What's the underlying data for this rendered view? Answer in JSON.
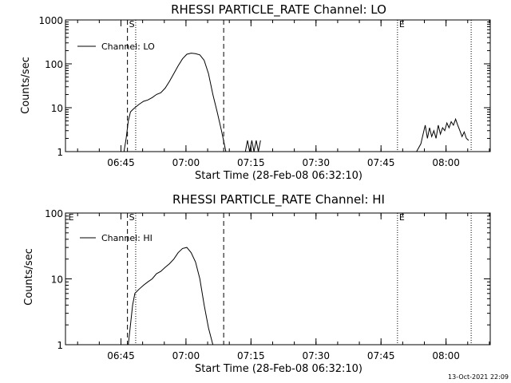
{
  "chart_data": [
    {
      "type": "line",
      "title": "RHESSI PARTICLE_RATE Channel: LO",
      "xlabel": "Start Time (28-Feb-08 06:32:10)",
      "ylabel": "Counts/sec",
      "yscale": "log",
      "ylim": [
        1,
        1000
      ],
      "xlim_minutes": [
        0,
        98
      ],
      "yticks": [
        {
          "value": 1,
          "label": "1"
        },
        {
          "value": 10,
          "label": "10"
        },
        {
          "value": 100,
          "label": "100"
        },
        {
          "value": 1000,
          "label": "1000"
        }
      ],
      "xticks": [
        {
          "value": 12.8,
          "label": "06:45"
        },
        {
          "value": 27.8,
          "label": "07:00"
        },
        {
          "value": 42.8,
          "label": "07:15"
        },
        {
          "value": 57.8,
          "label": "07:30"
        },
        {
          "value": 72.8,
          "label": "07:45"
        },
        {
          "value": 87.8,
          "label": "08:00"
        }
      ],
      "legend": {
        "entries": [
          "Channel: LO"
        ],
        "position": "top-left"
      },
      "markers": [
        {
          "label": "S",
          "x": 14.3,
          "style": "dashed"
        },
        {
          "label": "",
          "x": 16.2,
          "style": "dotted"
        },
        {
          "label": "",
          "x": 36.5,
          "style": "dashed"
        },
        {
          "label": "E",
          "x": 76.6,
          "style": "dotted"
        },
        {
          "label": "",
          "x": 93.6,
          "style": "dotted"
        }
      ],
      "series": [
        {
          "name": "Channel: LO",
          "segments": [
            {
              "x": [
                13.5,
                14.0,
                14.5,
                15.0,
                15.5,
                16.0,
                17.0,
                18.0,
                19.0,
                20.0,
                21.0,
                22.0,
                23.0,
                24.0,
                25.0,
                26.0,
                27.0,
                28.0,
                29.0,
                30.0,
                31.0,
                32.0,
                33.0,
                34.0,
                35.0,
                36.0,
                37.0
              ],
              "y": [
                1,
                2,
                5,
                8,
                9,
                10,
                12,
                14,
                15,
                17,
                20,
                22,
                28,
                40,
                60,
                90,
                130,
                165,
                175,
                170,
                160,
                120,
                60,
                20,
                8,
                3,
                1
              ]
            },
            {
              "x": [
                41.5,
                42.0,
                42.5,
                43.0,
                43.5,
                44.0,
                44.5,
                45.0
              ],
              "y": [
                1,
                1.8,
                1,
                1.8,
                1,
                1.8,
                1,
                1.8
              ]
            },
            {
              "x": [
                81.0,
                82.0,
                82.5,
                83.0,
                83.5,
                84.0,
                84.5,
                85.0,
                85.5,
                86.0,
                86.5,
                87.0,
                87.5,
                88.0,
                88.5,
                89.0,
                89.5,
                90.0,
                90.5,
                91.0,
                91.5,
                92.0,
                92.5,
                93.0
              ],
              "y": [
                1,
                1.5,
                2.5,
                4,
                2,
                3.5,
                2.2,
                3,
                2,
                4,
                2.5,
                3.5,
                3,
                4.5,
                3.5,
                4.8,
                4,
                5.5,
                4,
                3,
                2.2,
                2.8,
                2,
                1.8
              ]
            }
          ]
        }
      ]
    },
    {
      "type": "line",
      "title": "RHESSI PARTICLE_RATE Channel: HI",
      "xlabel": "Start Time (28-Feb-08 06:32:10)",
      "ylabel": "Counts/sec",
      "yscale": "log",
      "ylim": [
        1,
        100
      ],
      "xlim_minutes": [
        0,
        98
      ],
      "yticks": [
        {
          "value": 1,
          "label": "1"
        },
        {
          "value": 10,
          "label": "10"
        },
        {
          "value": 100,
          "label": "100"
        }
      ],
      "xticks": [
        {
          "value": 12.8,
          "label": "06:45"
        },
        {
          "value": 27.8,
          "label": "07:00"
        },
        {
          "value": 42.8,
          "label": "07:15"
        },
        {
          "value": 57.8,
          "label": "07:30"
        },
        {
          "value": 72.8,
          "label": "07:45"
        },
        {
          "value": 87.8,
          "label": "08:00"
        }
      ],
      "legend": {
        "entries": [
          "Channel: HI"
        ],
        "position": "top-left"
      },
      "markers": [
        {
          "label": "E",
          "x": 0.3,
          "style": "none"
        },
        {
          "label": "S",
          "x": 14.3,
          "style": "dashed"
        },
        {
          "label": "",
          "x": 16.2,
          "style": "dotted"
        },
        {
          "label": "",
          "x": 36.5,
          "style": "dashed"
        },
        {
          "label": "E",
          "x": 76.6,
          "style": "dotted"
        },
        {
          "label": "",
          "x": 93.6,
          "style": "dotted"
        }
      ],
      "series": [
        {
          "name": "Channel: HI",
          "segments": [
            {
              "x": [
                14.5,
                15.0,
                15.5,
                16.0,
                17.0,
                18.0,
                19.0,
                20.0,
                21.0,
                22.0,
                23.0,
                24.0,
                25.0,
                26.0,
                27.0,
                28.0,
                29.0,
                30.0,
                31.0,
                32.0,
                33.0,
                34.0
              ],
              "y": [
                1,
                2,
                4,
                6,
                7,
                8,
                9,
                10,
                12,
                13,
                15,
                17,
                20,
                25,
                29,
                30,
                25,
                18,
                10,
                4,
                1.8,
                1
              ]
            }
          ]
        }
      ]
    }
  ],
  "footer": {
    "timestamp": "13-Oct-2021 22:09"
  }
}
